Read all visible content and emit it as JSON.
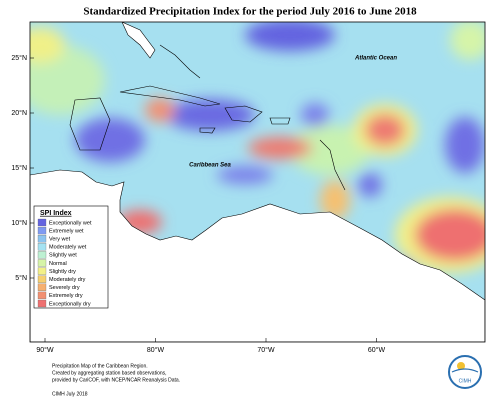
{
  "header": {
    "title": "Standardized Precipitation Index for the period July 2016 to June 2018"
  },
  "map": {
    "labels": [
      "Atlantic Ocean",
      "Caribbean Sea"
    ],
    "lat_labels": [
      "25°N",
      "20°N",
      "15°N",
      "10°N",
      "5°N"
    ],
    "lon_labels": [
      "90°W",
      "80°W",
      "70°W",
      "60°W"
    ]
  },
  "legend": {
    "title": "SPI Index",
    "items": [
      {
        "label": "Exceptionally wet",
        "color": "#6464e0"
      },
      {
        "label": "Extremely wet",
        "color": "#7f9af2"
      },
      {
        "label": "Very wet",
        "color": "#8cc4f0"
      },
      {
        "label": "Moderately wet",
        "color": "#a4e2f2"
      },
      {
        "label": "Slightly wet",
        "color": "#bdf0d2"
      },
      {
        "label": "Normal",
        "color": "#d6f4a8"
      },
      {
        "label": "Slightly dry",
        "color": "#f2f088"
      },
      {
        "label": "Moderately dry",
        "color": "#f6d070"
      },
      {
        "label": "Severely dry",
        "color": "#f6b070"
      },
      {
        "label": "Extremely dry",
        "color": "#f29072"
      },
      {
        "label": "Exceptionally dry",
        "color": "#ee7070"
      }
    ]
  },
  "footer": {
    "lines": [
      "Precipitation Map of the Caribbean Region.",
      "Created by aggregating station based observations,",
      "provided by CariCOF, with NCEP/NCAR Reanalysis Data."
    ],
    "credit": "CIMH July 2018",
    "logo": "CIMH"
  }
}
